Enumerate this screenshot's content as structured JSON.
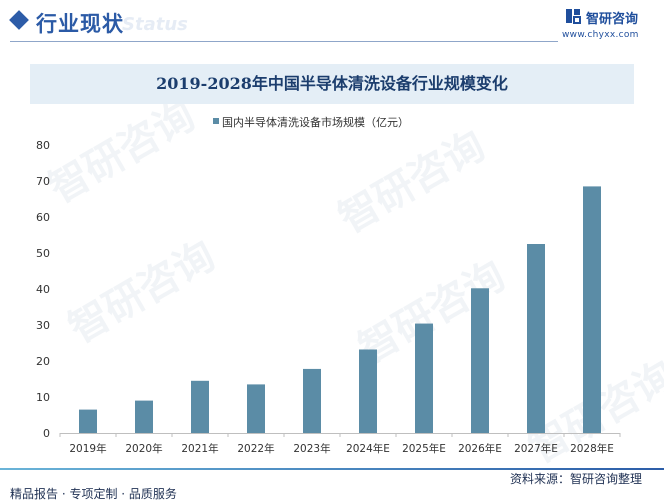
{
  "header": {
    "title": "行业现状",
    "watermark": "Status",
    "logo_name": "智研咨询",
    "logo_url": "www.chyxx.com"
  },
  "watermark": {
    "text": "智研咨询"
  },
  "footer": {
    "left": "精品报告 · 专项定制 · 品质服务",
    "source": "资料来源：智研咨询整理"
  },
  "colors": {
    "bar": "#5b8ca6",
    "title_band": "#e4eef6",
    "accent": "#2b5aa6"
  },
  "chart_data": {
    "type": "bar",
    "title": "2019-2028年中国半导体清洗设备行业规模变化",
    "legend": "国内半导体清洗设备市场规模（亿元）",
    "legend_position": "top-center",
    "categories": [
      "2019年",
      "2020年",
      "2021年",
      "2022年",
      "2023年",
      "2024年E",
      "2025年E",
      "2026年E",
      "2027年E",
      "2028年E"
    ],
    "values": [
      6.5,
      9.0,
      14.5,
      13.5,
      17.8,
      23.2,
      30.4,
      40.2,
      52.5,
      68.5
    ],
    "ylim": [
      0,
      80
    ],
    "yticks": [
      0,
      10,
      20,
      30,
      40,
      50,
      60,
      70,
      80
    ],
    "grid": false,
    "xlabel": "",
    "ylabel": ""
  }
}
